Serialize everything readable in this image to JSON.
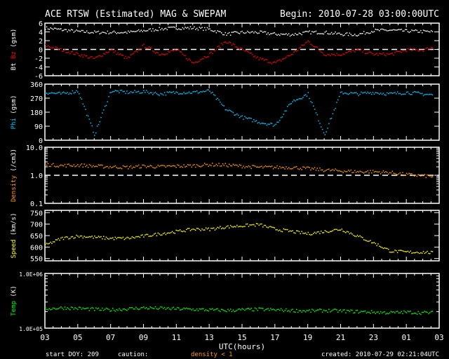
{
  "header": {
    "title": "ACE RTSW (Estimated) MAG & SWEPAM",
    "begin": "Begin: 2010-07-28 03:00:00UTC"
  },
  "footer": {
    "start_doy": "start DOY: 209",
    "caution": "caution:",
    "caution_note": "density < 1",
    "created": "created: 2010-07-29 02:21:04UTC"
  },
  "colors": {
    "bt": "#ffffff",
    "bz": "#ff0000",
    "phi": "#00c8ff",
    "density": "#ff9900",
    "speed": "#ffff00",
    "temp": "#00ff00",
    "frame": "#ffffff"
  },
  "chart_data": {
    "type": "scatter",
    "xlabel": "UTC(hours)",
    "x_hours": [
      0,
      1,
      2,
      3,
      4,
      5,
      6,
      7,
      8,
      9,
      10,
      11,
      12,
      13,
      14,
      15,
      16,
      17,
      18,
      19,
      20,
      21,
      22,
      23,
      24
    ],
    "x_tick_labels": [
      "03",
      "05",
      "07",
      "09",
      "11",
      "13",
      "15",
      "17",
      "19",
      "21",
      "23",
      "01",
      "03"
    ],
    "panels": [
      {
        "name": "bt-bz",
        "ylabel_parts": [
          "Bt",
          "Bz",
          "(gsm)"
        ],
        "scale": "linear",
        "ylim": [
          -6,
          6
        ],
        "ticks": [
          "6",
          "4",
          "2",
          "0",
          "-2",
          "-4",
          "-6"
        ],
        "tick_values": [
          6,
          4,
          2,
          0,
          -2,
          -4,
          -6
        ],
        "dashed_line": 0,
        "series": [
          {
            "name": "Bt",
            "color_key": "bt",
            "values": [
              5,
              4.6,
              4.2,
              4,
              4,
              4,
              4.4,
              4.8,
              5,
              5,
              4.7,
              3.6,
              4,
              4,
              3.6,
              3.5,
              4,
              4,
              3.6,
              3.5,
              4.4,
              4.5,
              4.3,
              4.2,
              4.1
            ]
          },
          {
            "name": "Bz",
            "color_key": "bz",
            "values": [
              1,
              0,
              -1,
              -2,
              0,
              -2,
              1,
              -1,
              0,
              -3,
              -1,
              2,
              0,
              -2,
              -3,
              -1,
              2,
              -1,
              -1,
              0,
              -1,
              -1,
              0,
              0,
              1
            ]
          }
        ]
      },
      {
        "name": "phi",
        "ylabel_parts": [
          "Phi",
          "(gsm)"
        ],
        "scale": "linear",
        "ylim": [
          0,
          360
        ],
        "ticks": [
          "360",
          "270",
          "180",
          "90",
          "0"
        ],
        "tick_values": [
          360,
          270,
          180,
          90,
          0
        ],
        "series": [
          {
            "name": "Phi",
            "color_key": "phi",
            "values": [
              310,
              300,
              320,
              40,
              320,
              310,
              315,
              300,
              310,
              310,
              320,
              200,
              150,
              120,
              100,
              250,
              300,
              40,
              310,
              300,
              310,
              300,
              310,
              300,
              290
            ]
          }
        ]
      },
      {
        "name": "density",
        "ylabel_parts": [
          "Density",
          "(/cm3)"
        ],
        "scale": "log",
        "ylim": [
          0.1,
          10
        ],
        "ticks": [
          "10.0",
          "1.0",
          "0.1"
        ],
        "tick_values": [
          10,
          1,
          0.1
        ],
        "dashed_line": 1,
        "series": [
          {
            "name": "Density",
            "color_key": "density",
            "values": [
              2.5,
              2.3,
              2.4,
              2.2,
              2.1,
              2.0,
              2.2,
              2.1,
              2.2,
              2.3,
              2.5,
              2.4,
              2.2,
              2.0,
              2.0,
              2.0,
              1.8,
              1.6,
              1.5,
              1.4,
              1.4,
              1.3,
              1.1,
              1.0,
              0.9
            ]
          }
        ]
      },
      {
        "name": "speed",
        "ylabel_parts": [
          "Speed",
          "(km/s)"
        ],
        "scale": "linear",
        "ylim": [
          540,
          760
        ],
        "ticks": [
          "750",
          "700",
          "650",
          "600",
          "550"
        ],
        "tick_values": [
          750,
          700,
          650,
          600,
          550
        ],
        "series": [
          {
            "name": "Speed",
            "color_key": "speed",
            "values": [
              610,
              640,
              650,
              645,
              640,
              640,
              650,
              660,
              670,
              680,
              680,
              690,
              695,
              700,
              680,
              670,
              660,
              670,
              680,
              650,
              620,
              585,
              580,
              580,
              575
            ]
          }
        ]
      },
      {
        "name": "temp",
        "ylabel_parts": [
          "Temp",
          "(K)"
        ],
        "scale": "log",
        "ylim": [
          100000,
          1000000
        ],
        "ticks": [
          "1.0E+06",
          "1.0E+05"
        ],
        "tick_values": [
          1000000,
          100000
        ],
        "series": [
          {
            "name": "Temp",
            "color_key": "temp",
            "values": [
              230000,
              240000,
              235000,
              225000,
              220000,
              230000,
              240000,
              235000,
              230000,
              225000,
              220000,
              215000,
              220000,
              225000,
              220000,
              215000,
              210000,
              215000,
              210000,
              205000,
              200000,
              195000,
              200000,
              195000,
              195000
            ]
          }
        ]
      }
    ]
  }
}
